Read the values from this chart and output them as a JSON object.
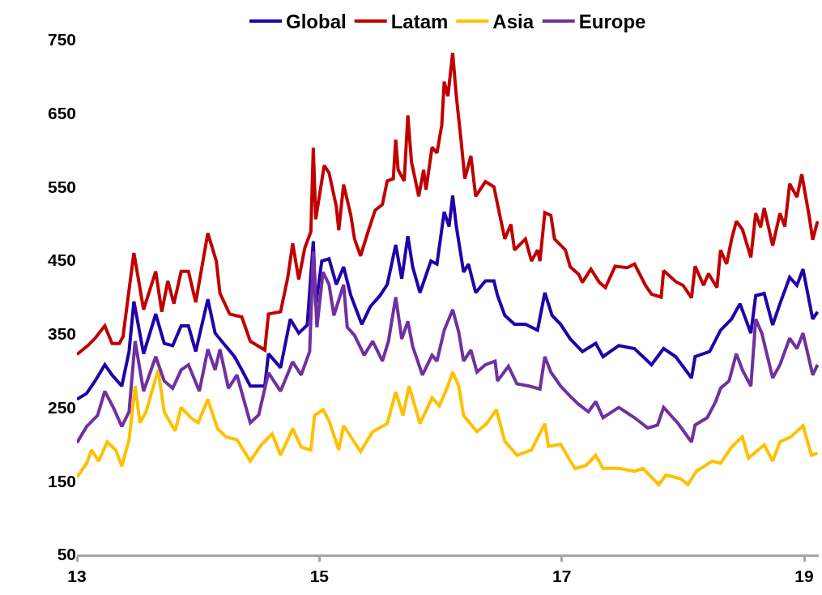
{
  "chart_data": {
    "type": "line",
    "xlim": [
      13,
      19.12
    ],
    "xticks": [
      13,
      15,
      17,
      19
    ],
    "ylim": [
      50,
      750
    ],
    "yticks": [
      50,
      150,
      250,
      350,
      450,
      550,
      650,
      750
    ],
    "legend": "top",
    "series": [
      {
        "name": "Global",
        "color": "#2200aa",
        "x": [
          13.0,
          13.08,
          13.15,
          13.23,
          13.29,
          13.37,
          13.43,
          13.47,
          13.55,
          13.65,
          13.72,
          13.79,
          13.86,
          13.92,
          13.98,
          14.08,
          14.14,
          14.21,
          14.3,
          14.36,
          14.43,
          14.55,
          14.58,
          14.68,
          14.76,
          14.83,
          14.9,
          14.95,
          14.97,
          15.02,
          15.08,
          15.14,
          15.2,
          15.26,
          15.35,
          15.42,
          15.5,
          15.56,
          15.63,
          15.68,
          15.73,
          15.77,
          15.83,
          15.92,
          15.97,
          16.03,
          16.07,
          16.1,
          16.13,
          16.19,
          16.23,
          16.29,
          16.37,
          16.44,
          16.47,
          16.53,
          16.61,
          16.7,
          16.8,
          16.86,
          16.92,
          16.99,
          17.07,
          17.17,
          17.28,
          17.34,
          17.47,
          17.6,
          17.74,
          17.84,
          17.94,
          18.07,
          18.1,
          18.22,
          18.31,
          18.4,
          18.47,
          18.56,
          18.6,
          18.67,
          18.74,
          18.8,
          18.88,
          18.94,
          18.99,
          19.07,
          19.11
        ],
        "values": [
          261,
          269,
          286,
          308,
          294,
          279,
          326,
          394,
          323,
          377,
          337,
          334,
          361,
          361,
          326,
          397,
          351,
          337,
          319,
          301,
          279,
          279,
          323,
          304,
          370,
          351,
          362,
          476,
          387,
          449,
          452,
          417,
          441,
          402,
          363,
          387,
          402,
          417,
          471,
          425,
          483,
          441,
          406,
          449,
          445,
          516,
          496,
          538,
          496,
          434,
          445,
          406,
          422,
          422,
          402,
          375,
          363,
          363,
          355,
          406,
          375,
          363,
          343,
          326,
          337,
          319,
          334,
          330,
          308,
          330,
          319,
          290,
          319,
          326,
          355,
          370,
          391,
          351,
          402,
          405,
          362,
          391,
          427,
          416,
          438,
          370,
          380
        ]
      },
      {
        "name": "Latam",
        "color": "#c00000",
        "x": [
          13.0,
          13.09,
          13.15,
          13.23,
          13.29,
          13.35,
          13.38,
          13.43,
          13.47,
          13.55,
          13.65,
          13.7,
          13.75,
          13.8,
          13.86,
          13.92,
          13.98,
          14.08,
          14.15,
          14.18,
          14.26,
          14.36,
          14.43,
          14.55,
          14.58,
          14.68,
          14.74,
          14.78,
          14.83,
          14.88,
          14.93,
          14.95,
          14.97,
          15.04,
          15.08,
          15.14,
          15.16,
          15.2,
          15.26,
          15.29,
          15.34,
          15.4,
          15.46,
          15.52,
          15.56,
          15.61,
          15.63,
          15.65,
          15.7,
          15.73,
          15.76,
          15.82,
          15.86,
          15.88,
          15.93,
          15.97,
          16.01,
          16.03,
          16.06,
          16.1,
          16.13,
          16.17,
          16.2,
          16.25,
          16.29,
          16.37,
          16.44,
          16.47,
          16.53,
          16.58,
          16.61,
          16.7,
          16.75,
          16.8,
          16.82,
          16.86,
          16.91,
          16.94,
          17.03,
          17.07,
          17.14,
          17.17,
          17.24,
          17.31,
          17.36,
          17.44,
          17.54,
          17.6,
          17.69,
          17.74,
          17.82,
          17.84,
          17.94,
          18.0,
          18.07,
          18.1,
          18.17,
          18.21,
          18.28,
          18.31,
          18.36,
          18.4,
          18.44,
          18.49,
          18.56,
          18.6,
          18.64,
          18.67,
          18.74,
          18.8,
          18.84,
          18.88,
          18.94,
          18.98,
          19.04,
          19.07,
          19.11
        ],
        "values": [
          322,
          334,
          344,
          361,
          337,
          337,
          346,
          410,
          460,
          383,
          435,
          380,
          422,
          391,
          435,
          435,
          393,
          487,
          449,
          405,
          377,
          373,
          340,
          328,
          377,
          380,
          427,
          473,
          424,
          467,
          489,
          603,
          506,
          579,
          569,
          523,
          491,
          553,
          511,
          479,
          456,
          488,
          518,
          526,
          558,
          561,
          614,
          573,
          558,
          647,
          584,
          537,
          573,
          546,
          604,
          596,
          634,
          693,
          673,
          732,
          673,
          612,
          561,
          592,
          537,
          557,
          550,
          526,
          479,
          499,
          464,
          479,
          449,
          464,
          449,
          515,
          511,
          479,
          464,
          441,
          431,
          420,
          438,
          420,
          413,
          442,
          440,
          445,
          416,
          404,
          400,
          436,
          421,
          416,
          399,
          442,
          416,
          432,
          413,
          464,
          445,
          478,
          503,
          492,
          454,
          514,
          495,
          521,
          470,
          514,
          496,
          554,
          536,
          567,
          511,
          478,
          503
        ]
      },
      {
        "name": "Asia",
        "color": "#ffc000",
        "x": [
          13.0,
          13.08,
          13.12,
          13.18,
          13.25,
          13.32,
          13.37,
          13.43,
          13.48,
          13.52,
          13.57,
          13.67,
          13.72,
          13.81,
          13.86,
          13.94,
          14.0,
          14.08,
          14.16,
          14.23,
          14.32,
          14.43,
          14.52,
          14.61,
          14.68,
          14.78,
          14.85,
          14.93,
          14.96,
          15.03,
          15.08,
          15.16,
          15.2,
          15.34,
          15.44,
          15.56,
          15.63,
          15.69,
          15.74,
          15.83,
          15.93,
          15.99,
          16.06,
          16.1,
          16.15,
          16.19,
          16.3,
          16.38,
          16.46,
          16.53,
          16.63,
          16.75,
          16.86,
          16.89,
          16.99,
          17.07,
          17.11,
          17.2,
          17.28,
          17.34,
          17.47,
          17.6,
          17.67,
          17.8,
          17.86,
          17.98,
          18.04,
          18.11,
          18.24,
          18.31,
          18.4,
          18.49,
          18.54,
          18.67,
          18.74,
          18.8,
          18.89,
          18.99,
          19.06,
          19.11
        ],
        "values": [
          155,
          174,
          192,
          177,
          203,
          192,
          170,
          206,
          279,
          229,
          244,
          301,
          244,
          218,
          250,
          236,
          229,
          261,
          221,
          210,
          206,
          177,
          199,
          214,
          185,
          221,
          196,
          192,
          239,
          247,
          232,
          192,
          225,
          190,
          217,
          228,
          271,
          239,
          279,
          228,
          263,
          252,
          279,
          298,
          279,
          239,
          217,
          228,
          247,
          204,
          185,
          192,
          228,
          197,
          200,
          177,
          167,
          171,
          185,
          167,
          167,
          163,
          167,
          145,
          158,
          153,
          145,
          163,
          177,
          174,
          196,
          210,
          181,
          199,
          177,
          203,
          210,
          225,
          185,
          188
        ]
      },
      {
        "name": "Europe",
        "color": "#7030a0",
        "x": [
          13.0,
          13.08,
          13.17,
          13.23,
          13.3,
          13.37,
          13.43,
          13.48,
          13.55,
          13.65,
          13.72,
          13.79,
          13.86,
          13.92,
          14.01,
          14.08,
          14.14,
          14.18,
          14.25,
          14.32,
          14.43,
          14.5,
          14.58,
          14.68,
          14.78,
          14.85,
          14.92,
          14.95,
          14.98,
          15.03,
          15.08,
          15.12,
          15.2,
          15.23,
          15.29,
          15.37,
          15.44,
          15.52,
          15.57,
          15.63,
          15.68,
          15.73,
          15.77,
          15.85,
          15.93,
          15.97,
          16.03,
          16.1,
          16.15,
          16.19,
          16.25,
          16.3,
          16.37,
          16.45,
          16.47,
          16.56,
          16.63,
          16.73,
          16.82,
          16.86,
          16.91,
          16.99,
          17.07,
          17.14,
          17.22,
          17.28,
          17.34,
          17.47,
          17.6,
          17.71,
          17.79,
          17.84,
          17.96,
          18.07,
          18.1,
          18.2,
          18.27,
          18.31,
          18.38,
          18.44,
          18.49,
          18.56,
          18.6,
          18.65,
          18.74,
          18.8,
          18.88,
          18.94,
          18.99,
          19.07,
          19.11
        ],
        "values": [
          202,
          224,
          239,
          272,
          250,
          224,
          244,
          340,
          272,
          319,
          286,
          276,
          301,
          308,
          272,
          329,
          301,
          329,
          276,
          294,
          229,
          240,
          297,
          272,
          312,
          294,
          326,
          462,
          359,
          434,
          417,
          375,
          417,
          359,
          348,
          321,
          340,
          313,
          340,
          400,
          343,
          367,
          333,
          294,
          321,
          313,
          355,
          383,
          352,
          313,
          328,
          298,
          308,
          313,
          286,
          306,
          282,
          279,
          275,
          319,
          298,
          279,
          265,
          254,
          244,
          258,
          236,
          250,
          236,
          222,
          226,
          250,
          228,
          203,
          226,
          236,
          258,
          276,
          286,
          323,
          301,
          279,
          370,
          351,
          290,
          308,
          344,
          330,
          351,
          294,
          308
        ]
      }
    ]
  }
}
